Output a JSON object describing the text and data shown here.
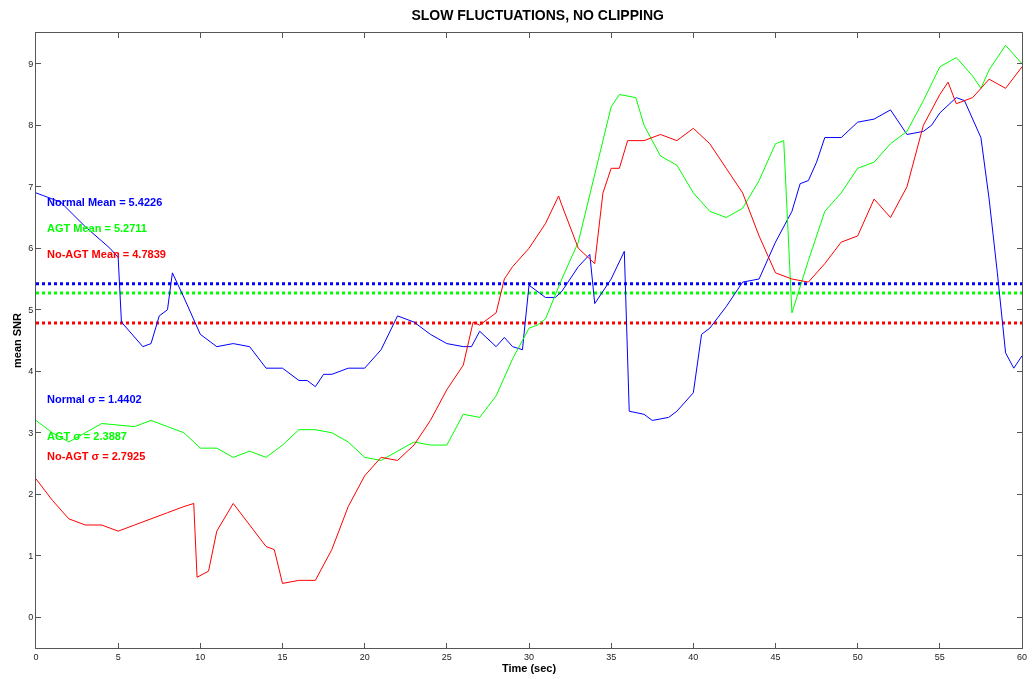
{
  "chart_data": {
    "type": "line",
    "title": "SLOW FLUCTUATIONS, NO CLIPPING",
    "xlabel": "Time (sec)",
    "ylabel": "mean SNR",
    "xlim": [
      0,
      60
    ],
    "xticks": [
      0,
      5,
      10,
      15,
      20,
      25,
      30,
      35,
      40,
      45,
      50,
      55,
      60
    ],
    "ylim": [
      -0.5,
      9.5
    ],
    "yticks": [
      0,
      1,
      2,
      3,
      4,
      5,
      6,
      7,
      8,
      9
    ],
    "grid": false,
    "marker": "none",
    "line_style": "solid",
    "series": [
      {
        "color": "#0000ff",
        "x": [
          0,
          1.5,
          3,
          4.5,
          5,
          5.2,
          6.5,
          7,
          7.5,
          8,
          8.3,
          9,
          10,
          11,
          12,
          13,
          14,
          15,
          16,
          16.5,
          17,
          17.5,
          18,
          19,
          20,
          21,
          22,
          23,
          24,
          25,
          26,
          26.5,
          27,
          28,
          28.5,
          29,
          29.6,
          30,
          31,
          31.6,
          32,
          33,
          33.7,
          34,
          35,
          35.8,
          36.1,
          37,
          37.5,
          38.5,
          39,
          40,
          40.5,
          41,
          42,
          43,
          44,
          45,
          46,
          46.5,
          47,
          47.5,
          48,
          49,
          50,
          51,
          52,
          53,
          54,
          54.5,
          55,
          56,
          56.5,
          57.5,
          58,
          58.5,
          59,
          59.5,
          60
        ],
        "values": [
          6.9,
          6.75,
          6.35,
          6.0,
          5.85,
          4.8,
          4.4,
          4.45,
          4.9,
          5.0,
          5.6,
          5.2,
          4.6,
          4.4,
          4.45,
          4.4,
          4.05,
          4.05,
          3.85,
          3.85,
          3.75,
          3.95,
          3.95,
          4.05,
          4.05,
          4.35,
          4.9,
          4.8,
          4.6,
          4.45,
          4.4,
          4.4,
          4.65,
          4.4,
          4.55,
          4.4,
          4.35,
          5.4,
          5.2,
          5.2,
          5.3,
          5.7,
          5.9,
          5.1,
          5.5,
          5.95,
          3.35,
          3.3,
          3.2,
          3.25,
          3.35,
          3.65,
          4.6,
          4.7,
          5.05,
          5.45,
          5.5,
          6.1,
          6.6,
          7.05,
          7.1,
          7.4,
          7.8,
          7.8,
          8.05,
          8.1,
          8.25,
          7.85,
          7.9,
          8.0,
          8.2,
          8.45,
          8.4,
          7.8,
          6.8,
          5.6,
          4.3,
          4.05,
          4.25
        ]
      },
      {
        "color": "#00ff00",
        "x": [
          0,
          1,
          2,
          3,
          4,
          6,
          7,
          8,
          9,
          10,
          11,
          12,
          13,
          14,
          15,
          16,
          17,
          18,
          19,
          20,
          21,
          22,
          23,
          24,
          25,
          26,
          27,
          28,
          29,
          30,
          30.5,
          31,
          32,
          33,
          34,
          35,
          35.5,
          36.5,
          37,
          38,
          39,
          40,
          41,
          42,
          43,
          44,
          45,
          45.5,
          46,
          47,
          48,
          49,
          50,
          51,
          52,
          53,
          54,
          55,
          56,
          57,
          57.5,
          58,
          59,
          60
        ],
        "values": [
          3.2,
          3.0,
          2.85,
          3.0,
          3.15,
          3.1,
          3.2,
          3.1,
          3.0,
          2.75,
          2.75,
          2.6,
          2.7,
          2.6,
          2.8,
          3.05,
          3.05,
          3.0,
          2.85,
          2.6,
          2.55,
          2.7,
          2.85,
          2.8,
          2.8,
          3.3,
          3.25,
          3.6,
          4.2,
          4.7,
          4.75,
          4.85,
          5.5,
          6.1,
          7.2,
          8.3,
          8.5,
          8.45,
          8.0,
          7.5,
          7.35,
          6.9,
          6.6,
          6.5,
          6.65,
          7.1,
          7.7,
          7.75,
          4.95,
          5.8,
          6.6,
          6.9,
          7.3,
          7.4,
          7.7,
          7.9,
          8.4,
          8.95,
          9.1,
          8.8,
          8.6,
          8.9,
          9.3,
          9.0
        ]
      },
      {
        "color": "#ff0000",
        "x": [
          0,
          1,
          2,
          3,
          4,
          5,
          6,
          7,
          8,
          9,
          9.6,
          9.8,
          10.5,
          11,
          12,
          13,
          14,
          14.5,
          15,
          16,
          17,
          18,
          19,
          20,
          21,
          22,
          23,
          24,
          25,
          26,
          26.6,
          27,
          28,
          28.5,
          29,
          30,
          31,
          31.8,
          32,
          33,
          34,
          34.5,
          35,
          35.5,
          36,
          37,
          38,
          39,
          40,
          41,
          42,
          43,
          44,
          45,
          46,
          47,
          48,
          49,
          50,
          51,
          52,
          53,
          54,
          55,
          55.5,
          56,
          57,
          58,
          59,
          60
        ],
        "values": [
          2.25,
          1.9,
          1.6,
          1.5,
          1.5,
          1.4,
          1.5,
          1.6,
          1.7,
          1.8,
          1.85,
          0.65,
          0.75,
          1.4,
          1.85,
          1.5,
          1.15,
          1.1,
          0.55,
          0.6,
          0.6,
          1.1,
          1.8,
          2.3,
          2.6,
          2.55,
          2.8,
          3.2,
          3.7,
          4.1,
          4.8,
          4.75,
          4.95,
          5.5,
          5.7,
          6.0,
          6.4,
          6.85,
          6.7,
          6.0,
          5.75,
          6.9,
          7.3,
          7.3,
          7.75,
          7.75,
          7.85,
          7.75,
          7.95,
          7.7,
          7.3,
          6.9,
          6.2,
          5.6,
          5.5,
          5.45,
          5.75,
          6.1,
          6.2,
          6.8,
          6.5,
          7.0,
          8.0,
          8.5,
          8.7,
          8.35,
          8.45,
          8.75,
          8.6,
          8.95
        ]
      }
    ],
    "ref_lines": [
      {
        "axis": "y",
        "value": 5.4226,
        "color": "#0000ff",
        "line_style": "dotted"
      },
      {
        "axis": "y",
        "value": 5.2711,
        "color": "#00ff00",
        "line_style": "dotted"
      },
      {
        "axis": "y",
        "value": 4.7839,
        "color": "#ff0000",
        "line_style": "dotted"
      }
    ],
    "annotations": [
      "Normal Mean = 5.4226",
      "AGT Mean = 5.2711",
      "No-AGT Mean = 4.7839",
      "Normal σ = 1.4402",
      "AGT σ = 2.3887",
      "No-AGT σ = 2.7925"
    ]
  }
}
